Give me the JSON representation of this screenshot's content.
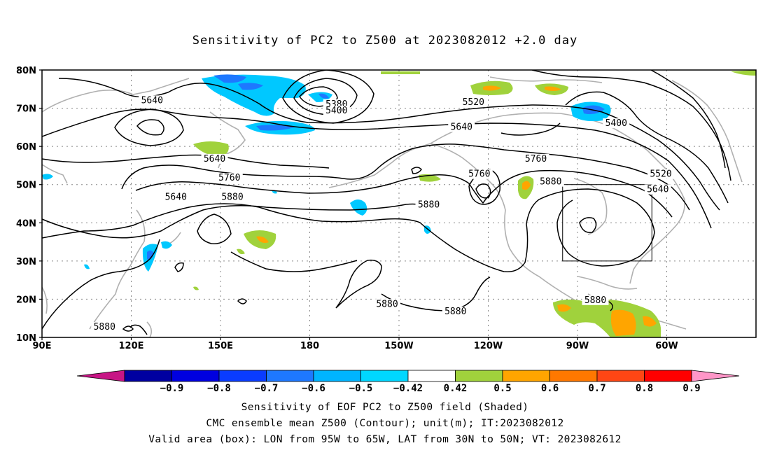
{
  "title": "Sensitivity of PC2 to Z500 at 2023082012 +2.0 day",
  "map": {
    "lat_labels": [
      "80N",
      "70N",
      "60N",
      "50N",
      "40N",
      "30N",
      "20N",
      "10N"
    ],
    "lon_labels": [
      "90E",
      "120E",
      "150E",
      "180",
      "150W",
      "120W",
      "90W",
      "60W"
    ],
    "contour_labels": [
      {
        "text": "5640",
        "lon": 127,
        "lat": 71.5
      },
      {
        "text": "5380",
        "lon": 189,
        "lat": 70.5
      },
      {
        "text": "5400",
        "lon": 189,
        "lat": 68.8
      },
      {
        "text": "5520",
        "lon": 235,
        "lat": 71
      },
      {
        "text": "5640",
        "lon": 231,
        "lat": 64.5
      },
      {
        "text": "5400",
        "lon": 283,
        "lat": 65.5
      },
      {
        "text": "5640",
        "lon": 148,
        "lat": 56.2
      },
      {
        "text": "5760",
        "lon": 237,
        "lat": 52.2
      },
      {
        "text": "5760",
        "lon": 256,
        "lat": 56.2
      },
      {
        "text": "5880",
        "lon": 261,
        "lat": 50.2
      },
      {
        "text": "5520",
        "lon": 298,
        "lat": 52.2
      },
      {
        "text": "5640",
        "lon": 297,
        "lat": 48.2
      },
      {
        "text": "5760",
        "lon": 153,
        "lat": 51.2
      },
      {
        "text": "5640",
        "lon": 135,
        "lat": 46.2
      },
      {
        "text": "5880",
        "lon": 154,
        "lat": 46.2
      },
      {
        "text": "5880",
        "lon": 220,
        "lat": 44.2
      },
      {
        "text": "5880",
        "lon": 206,
        "lat": 18.2
      },
      {
        "text": "5880",
        "lon": 229,
        "lat": 16.2
      },
      {
        "text": "5880",
        "lon": 276,
        "lat": 19.2
      },
      {
        "text": "5880",
        "lon": 111,
        "lat": 12.2
      }
    ],
    "valid_box": {
      "lon_west": -95,
      "lon_east": -65,
      "lat_south": 30,
      "lat_north": 50
    }
  },
  "colorbar": {
    "ticks": [
      "−0.9",
      "−0.8",
      "−0.7",
      "−0.6",
      "−0.5",
      "−0.42",
      "0.42",
      "0.5",
      "0.6",
      "0.7",
      "0.8",
      "0.9"
    ],
    "colors": [
      "#c71585",
      "#0000a0",
      "#0000e0",
      "#0a3cff",
      "#1e78ff",
      "#00b4ff",
      "#00d7ff",
      "#ffffff",
      "#a0d23c",
      "#ffa500",
      "#ff7800",
      "#ff4614",
      "#ff0000",
      "#ff96c8"
    ]
  },
  "captions": {
    "line1": "Sensitivity of EOF PC2 to Z500 field (Shaded)",
    "line2": "CMC ensemble mean Z500 (Contour); unit(m); IT:2023082012",
    "line3": "Valid area (box): LON from 95W to 65W, LAT from 30N to 50N; VT: 2023082612"
  }
}
